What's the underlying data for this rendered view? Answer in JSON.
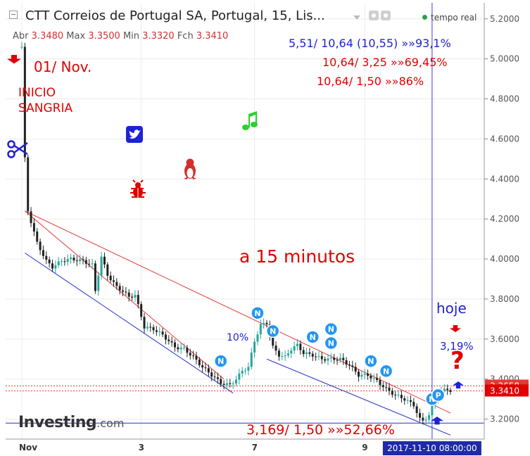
{
  "header": {
    "title": "CTT Correios de Portugal SA, Portugal, 15, Lis...",
    "live_label": "tempo real",
    "ohlc": [
      {
        "label": "Abr",
        "value": "3.3480"
      },
      {
        "label": "Max",
        "value": "3.3500"
      },
      {
        "label": "Min",
        "value": "3.3320"
      },
      {
        "label": "Fch",
        "value": "3.3410"
      }
    ]
  },
  "annotations": {
    "date_note": "01/ Nov.",
    "inicio_line1": "INICIO",
    "inicio_line2": "SANGRIA",
    "stats_line1": "5,51/ 10,64 (10,55) »»93,1%",
    "stats_line2": "10,64/ 3,25 »»69,45%",
    "stats_line3": "10,64/ 1,50 »»86%",
    "timeframe": "a 15 minutos",
    "pct_10": "10%",
    "hoje": "hoje",
    "pct_hoje": "3,19%",
    "bottom_stat": "3,169/ 1,50 »»52,66%",
    "question_mark": "?"
  },
  "logo": {
    "brand": "Investing",
    "suffix": ".com"
  },
  "crosshair_label": "2017-11-10 08:00:00",
  "colors": {
    "up": "#26a69a",
    "down": "#222222",
    "trend_red": "#e53935",
    "channel_blue": "#2430c8",
    "accent_red": "#e00000"
  },
  "icons": [
    "scissors-icon",
    "twitter-icon",
    "music-note-icon",
    "penguin-icon",
    "bug-icon",
    "arrow-down-icon",
    "arrow-up-icon",
    "news-marker-icon"
  ],
  "chart_data": {
    "type": "candlestick",
    "title": "CTT Correios de Portugal SA, Portugal, 15, Lis...",
    "ylim": [
      3.1,
      5.28
    ],
    "y_ticks": [
      "3.2000",
      "3.4000",
      "3.6000",
      "3.8000",
      "4.0000",
      "4.2000",
      "4.4000",
      "4.6000",
      "4.8000",
      "5.0000",
      "5.2000"
    ],
    "x_ticks": [
      {
        "label": "Nov",
        "i": 0
      },
      {
        "label": "3",
        "i": 39
      },
      {
        "label": "7",
        "i": 76
      },
      {
        "label": "9",
        "i": 112
      }
    ],
    "price_labels": [
      {
        "value": 3.3658,
        "text": "3.3658",
        "color": "#e53935"
      },
      {
        "value": 3.341,
        "text": "3.3410",
        "color": "#e00000"
      }
    ],
    "crosshair_index": 134,
    "path": [
      [
        0,
        5.06
      ],
      [
        1,
        4.5
      ],
      [
        2,
        4.24
      ],
      [
        5,
        4.08
      ],
      [
        8,
        3.99
      ],
      [
        10,
        3.96
      ],
      [
        13,
        3.99
      ],
      [
        16,
        4.0
      ],
      [
        20,
        3.99
      ],
      [
        23,
        3.97
      ],
      [
        24,
        3.84
      ],
      [
        26,
        4.01
      ],
      [
        28,
        3.92
      ],
      [
        31,
        3.86
      ],
      [
        33,
        3.84
      ],
      [
        35,
        3.81
      ],
      [
        37,
        3.82
      ],
      [
        40,
        3.66
      ],
      [
        43,
        3.65
      ],
      [
        46,
        3.62
      ],
      [
        50,
        3.56
      ],
      [
        53,
        3.55
      ],
      [
        56,
        3.51
      ],
      [
        59,
        3.46
      ],
      [
        62,
        3.42
      ],
      [
        65,
        3.38
      ],
      [
        68,
        3.37
      ],
      [
        70,
        3.4
      ],
      [
        72,
        3.44
      ],
      [
        74,
        3.46
      ],
      [
        76,
        3.59
      ],
      [
        78,
        3.67
      ],
      [
        80,
        3.68
      ],
      [
        82,
        3.56
      ],
      [
        84,
        3.52
      ],
      [
        86,
        3.51
      ],
      [
        88,
        3.55
      ],
      [
        90,
        3.57
      ],
      [
        92,
        3.53
      ],
      [
        95,
        3.52
      ],
      [
        98,
        3.5
      ],
      [
        101,
        3.5
      ],
      [
        104,
        3.5
      ],
      [
        107,
        3.47
      ],
      [
        110,
        3.42
      ],
      [
        113,
        3.42
      ],
      [
        116,
        3.39
      ],
      [
        119,
        3.35
      ],
      [
        122,
        3.32
      ],
      [
        125,
        3.3
      ],
      [
        128,
        3.27
      ],
      [
        130,
        3.2
      ],
      [
        131,
        3.19
      ],
      [
        133,
        3.22
      ],
      [
        135,
        3.3
      ],
      [
        137,
        3.34
      ],
      [
        139,
        3.35
      ],
      [
        140,
        3.341
      ]
    ],
    "trendlines": [
      {
        "color": "red",
        "from": [
          1,
          4.24
        ],
        "to": [
          140,
          3.23
        ]
      },
      {
        "color": "red",
        "from": [
          1,
          4.24
        ],
        "to": [
          66,
          3.4
        ]
      },
      {
        "color": "blue",
        "from": [
          1,
          4.03
        ],
        "to": [
          69,
          3.33
        ]
      },
      {
        "color": "blue",
        "from": [
          80,
          3.5
        ],
        "to": [
          140,
          3.12
        ]
      }
    ],
    "hlines": [
      {
        "value": 3.3658,
        "color": "red",
        "style": "dotted"
      },
      {
        "value": 3.341,
        "color": "red",
        "style": "dotted"
      },
      {
        "value": 3.18,
        "color": "blue",
        "style": "solid"
      }
    ],
    "event_markers": [
      {
        "i": 65,
        "y": 3.49,
        "label": "N"
      },
      {
        "i": 77,
        "y": 3.73,
        "label": "N"
      },
      {
        "i": 82,
        "y": 3.64,
        "label": "N"
      },
      {
        "i": 95,
        "y": 3.61,
        "label": "N"
      },
      {
        "i": 101,
        "y": 3.65,
        "label": "N"
      },
      {
        "i": 101,
        "y": 3.58,
        "label": "N"
      },
      {
        "i": 114,
        "y": 3.49,
        "label": "N"
      },
      {
        "i": 119,
        "y": 3.44,
        "label": "N"
      },
      {
        "i": 134,
        "y": 3.3,
        "label": "N"
      },
      {
        "i": 136,
        "y": 3.32,
        "label": "P"
      }
    ]
  }
}
